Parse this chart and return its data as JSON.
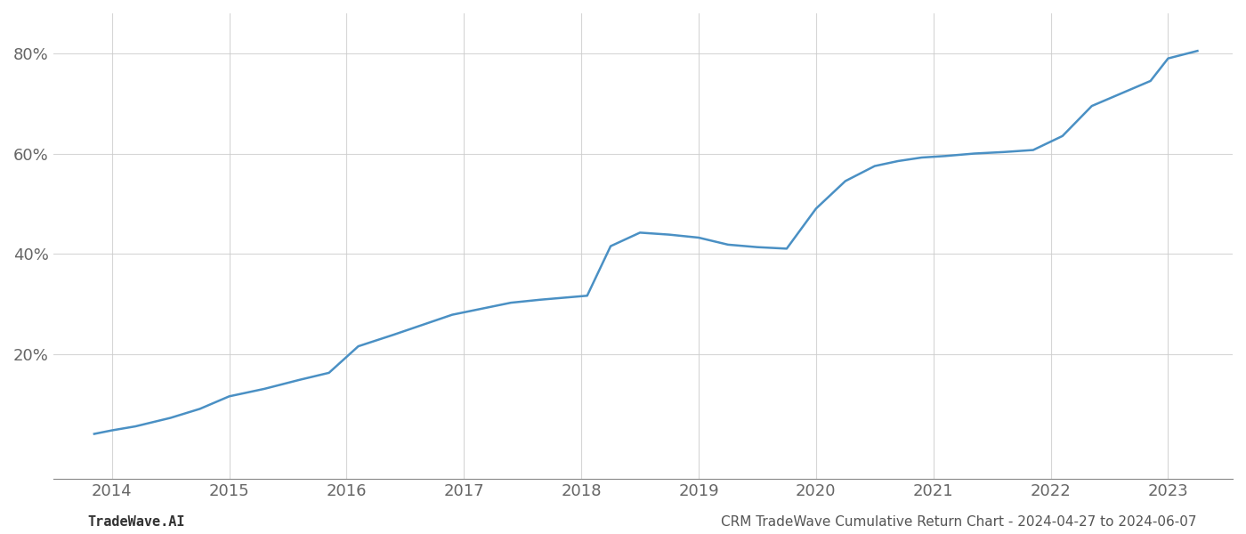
{
  "x_years": [
    2013.85,
    2014.0,
    2014.2,
    2014.5,
    2014.75,
    2015.0,
    2015.3,
    2015.6,
    2015.85,
    2016.1,
    2016.4,
    2016.65,
    2016.9,
    2017.15,
    2017.4,
    2017.65,
    2017.85,
    2018.05,
    2018.25,
    2018.5,
    2018.75,
    2019.0,
    2019.25,
    2019.5,
    2019.75,
    2020.0,
    2020.25,
    2020.5,
    2020.7,
    2020.9,
    2021.1,
    2021.35,
    2021.6,
    2021.85,
    2022.1,
    2022.35,
    2022.6,
    2022.85,
    2023.0,
    2023.25
  ],
  "y_values": [
    0.04,
    0.047,
    0.055,
    0.072,
    0.09,
    0.115,
    0.13,
    0.148,
    0.162,
    0.215,
    0.238,
    0.258,
    0.278,
    0.29,
    0.302,
    0.308,
    0.312,
    0.316,
    0.415,
    0.442,
    0.438,
    0.432,
    0.418,
    0.413,
    0.41,
    0.49,
    0.545,
    0.575,
    0.585,
    0.592,
    0.595,
    0.6,
    0.603,
    0.607,
    0.635,
    0.695,
    0.72,
    0.745,
    0.79,
    0.805
  ],
  "line_color": "#4a90c4",
  "line_width": 1.8,
  "xticks": [
    2014,
    2015,
    2016,
    2017,
    2018,
    2019,
    2020,
    2021,
    2022,
    2023
  ],
  "yticks": [
    0.2,
    0.4,
    0.6,
    0.8
  ],
  "ytick_labels": [
    "20%",
    "40%",
    "60%",
    "80%"
  ],
  "xlim": [
    2013.5,
    2023.55
  ],
  "ylim": [
    -0.05,
    0.88
  ],
  "grid_color": "#cccccc",
  "grid_alpha": 0.8,
  "bg_color": "#ffffff",
  "footer_left": "TradeWave.AI",
  "footer_right": "CRM TradeWave Cumulative Return Chart - 2024-04-27 to 2024-06-07",
  "footer_fontsize": 11,
  "footer_color": "#555555",
  "tick_fontsize": 13
}
